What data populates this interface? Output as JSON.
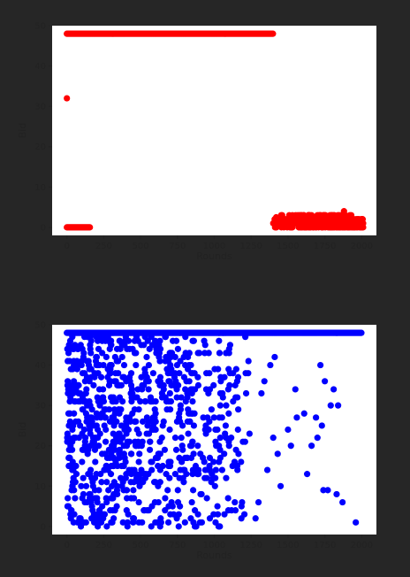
{
  "chart_data": [
    {
      "type": "scatter",
      "color": "#ff0000",
      "xlabel": "Rounds",
      "ylabel": "Bid",
      "xlim": [
        -100,
        2100
      ],
      "ylim": [
        -2,
        50
      ],
      "xticks": [
        0,
        250,
        500,
        750,
        1000,
        1250,
        1500,
        1750,
        2000
      ],
      "yticks": [
        0,
        10,
        20,
        30,
        40,
        50
      ],
      "segments": [
        {
          "x_start": 0,
          "x_end": 1400,
          "y": 48
        },
        {
          "x_start": 0,
          "x_end": 160,
          "y": 0
        }
      ],
      "points": [
        [
          0,
          32
        ],
        [
          1880,
          4
        ],
        [
          1420,
          2.5
        ],
        [
          1450,
          1
        ],
        [
          1480,
          2
        ],
        [
          1510,
          0.5
        ],
        [
          1540,
          1.5
        ],
        [
          1570,
          2
        ],
        [
          1600,
          1
        ],
        [
          1630,
          0.5
        ],
        [
          1660,
          3
        ],
        [
          1680,
          2
        ],
        [
          1700,
          3
        ],
        [
          1720,
          2.5
        ],
        [
          1740,
          3
        ],
        [
          1760,
          1.5
        ],
        [
          1790,
          2
        ],
        [
          1810,
          3
        ],
        [
          1840,
          2
        ],
        [
          1860,
          1
        ],
        [
          1900,
          2.5
        ],
        [
          1920,
          3
        ],
        [
          1950,
          1.5
        ],
        [
          1970,
          2
        ],
        [
          2000,
          2
        ],
        [
          2010,
          1
        ]
      ],
      "dense_band": {
        "x_start": 1400,
        "x_end": 2010,
        "y_min": 0,
        "y_max": 3
      }
    },
    {
      "type": "scatter",
      "color": "#0000ff",
      "xlabel": "Rounds",
      "ylabel": "Bid",
      "xlim": [
        -100,
        2100
      ],
      "ylim": [
        -2,
        50
      ],
      "xticks": [
        0,
        250,
        500,
        750,
        1000,
        1250,
        1500,
        1750,
        2000
      ],
      "yticks": [
        0,
        10,
        20,
        30,
        40,
        50
      ],
      "segments": [
        {
          "x_start": 0,
          "x_end": 2000,
          "y": 48
        }
      ],
      "points": [
        [
          1720,
          40
        ],
        [
          1810,
          34
        ],
        [
          1790,
          30
        ],
        [
          1840,
          30
        ],
        [
          1750,
          36
        ],
        [
          1690,
          27
        ],
        [
          1730,
          25
        ],
        [
          1700,
          22
        ],
        [
          1610,
          28
        ],
        [
          1660,
          20
        ],
        [
          1630,
          13
        ],
        [
          1740,
          9
        ],
        [
          1770,
          9
        ],
        [
          1830,
          8
        ],
        [
          1870,
          6
        ],
        [
          1960,
          1
        ],
        [
          1550,
          34
        ],
        [
          1560,
          27
        ],
        [
          1520,
          20
        ],
        [
          1500,
          24
        ],
        [
          1450,
          10
        ],
        [
          1400,
          22
        ],
        [
          1430,
          18
        ],
        [
          1380,
          40
        ],
        [
          1340,
          36
        ],
        [
          1320,
          33
        ],
        [
          1300,
          6
        ],
        [
          1280,
          2
        ],
        [
          1360,
          14
        ],
        [
          1410,
          42
        ]
      ],
      "dense_cloud": {
        "x_start": 0,
        "x_end": 1250,
        "y_min": 0,
        "y_max": 48,
        "count": 900,
        "density_fade": "decreasing toward higher rounds"
      }
    }
  ]
}
